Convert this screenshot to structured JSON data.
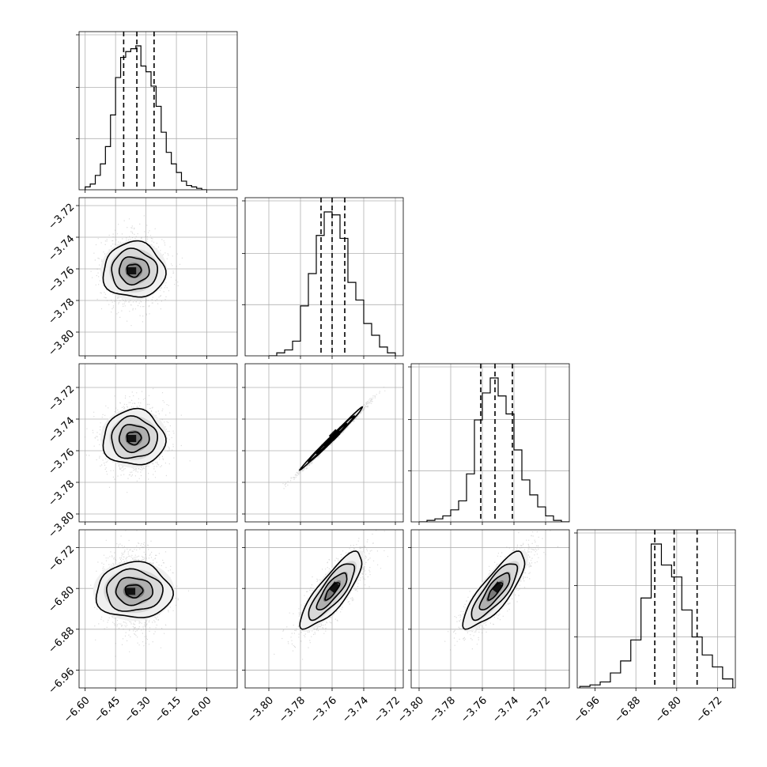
{
  "chart_data": {
    "type": "corner",
    "n_params": 4,
    "grid": true,
    "params": [
      {
        "range": [
          -6.63,
          -5.85
        ],
        "ticks": [
          -6.6,
          -6.45,
          -6.3,
          -6.15,
          -6.0
        ],
        "tick_labels": [
          "−6.60",
          "−6.45",
          "−6.30",
          "−6.15",
          "−6.00"
        ],
        "hist": {
          "bin_edges": [
            -6.6,
            -6.575,
            -6.55,
            -6.525,
            -6.5,
            -6.475,
            -6.45,
            -6.425,
            -6.4,
            -6.375,
            -6.35,
            -6.325,
            -6.3,
            -6.275,
            -6.25,
            -6.225,
            -6.2,
            -6.175,
            -6.15,
            -6.125,
            -6.1,
            -6.075,
            -6.05,
            -6.025,
            -6.0
          ],
          "counts": [
            2,
            4,
            10,
            18,
            30,
            52,
            78,
            92,
            96,
            98,
            100,
            86,
            82,
            72,
            58,
            40,
            26,
            18,
            12,
            6,
            3,
            2,
            1,
            0
          ]
        },
        "quantiles": [
          -6.41,
          -6.345,
          -6.26
        ]
      },
      {
        "range": [
          -3.815,
          -3.715
        ],
        "ticks": [
          -3.8,
          -3.78,
          -3.76,
          -3.74,
          -3.72
        ],
        "tick_labels": [
          "−3.80",
          "−3.78",
          "−3.76",
          "−3.74",
          "−3.72"
        ],
        "hist": {
          "bin_edges": [
            -3.8,
            -3.795,
            -3.79,
            -3.785,
            -3.78,
            -3.775,
            -3.77,
            -3.765,
            -3.76,
            -3.755,
            -3.75,
            -3.745,
            -3.74,
            -3.735,
            -3.73,
            -3.725,
            -3.72
          ],
          "counts": [
            0,
            2,
            4,
            10,
            34,
            56,
            82,
            98,
            96,
            80,
            50,
            38,
            22,
            14,
            6,
            2
          ]
        },
        "quantiles": [
          -3.767,
          -3.76,
          -3.752
        ]
      },
      {
        "range": [
          -3.805,
          -3.705
        ],
        "ticks": [
          -3.8,
          -3.78,
          -3.76,
          -3.74,
          -3.72
        ],
        "tick_labels": [
          "−3.80",
          "−3.78",
          "−3.76",
          "−3.74",
          "−3.72"
        ],
        "hist": {
          "bin_edges": [
            -3.8,
            -3.795,
            -3.79,
            -3.785,
            -3.78,
            -3.775,
            -3.77,
            -3.765,
            -3.76,
            -3.755,
            -3.75,
            -3.745,
            -3.74,
            -3.735,
            -3.73,
            -3.725,
            -3.72,
            -3.715,
            -3.71,
            -3.705
          ],
          "counts": [
            0,
            1,
            2,
            4,
            8,
            14,
            32,
            68,
            86,
            96,
            84,
            72,
            48,
            28,
            18,
            10,
            4,
            1,
            0
          ]
        },
        "quantiles": [
          -3.761,
          -3.752,
          -3.741
        ]
      },
      {
        "range": [
          -6.995,
          -6.685
        ],
        "ticks": [
          -6.96,
          -6.88,
          -6.8,
          -6.72
        ],
        "tick_labels": [
          "−6.96",
          "−6.88",
          "−6.80",
          "−6.72"
        ],
        "hist": {
          "bin_edges": [
            -6.99,
            -6.97,
            -6.95,
            -6.93,
            -6.91,
            -6.89,
            -6.87,
            -6.85,
            -6.83,
            -6.81,
            -6.79,
            -6.77,
            -6.75,
            -6.73,
            -6.71,
            -6.69
          ],
          "counts": [
            1,
            2,
            4,
            10,
            18,
            32,
            60,
            96,
            82,
            74,
            52,
            34,
            22,
            14,
            6
          ]
        },
        "quantiles": [
          -6.843,
          -6.805,
          -6.76
        ]
      }
    ],
    "pairs": [
      {
        "i": 1,
        "j": 0,
        "mean": [
          -6.36,
          -3.761
        ],
        "sd": [
          0.07,
          0.01
        ],
        "corr": 0.0,
        "bump": [
          0.03,
          0.0
        ]
      },
      {
        "i": 2,
        "j": 0,
        "mean": [
          -6.36,
          -3.752
        ],
        "sd": [
          0.07,
          0.01
        ],
        "corr": 0.0,
        "bump": [
          0.03,
          0.0
        ]
      },
      {
        "i": 2,
        "j": 1,
        "mean": [
          -3.76,
          -3.752
        ],
        "sd": [
          0.01,
          0.01
        ],
        "corr": 0.995
      },
      {
        "i": 3,
        "j": 0,
        "mean": [
          -6.36,
          -6.805
        ],
        "sd": [
          0.07,
          0.038
        ],
        "corr": 0.0,
        "bump": [
          0.03,
          0.0
        ]
      },
      {
        "i": 3,
        "j": 1,
        "mean": [
          -3.76,
          -6.805
        ],
        "sd": [
          0.01,
          0.038
        ],
        "corr": 0.82
      },
      {
        "i": 3,
        "j": 2,
        "mean": [
          -3.752,
          -6.805
        ],
        "sd": [
          0.01,
          0.038
        ],
        "corr": 0.82
      }
    ]
  }
}
